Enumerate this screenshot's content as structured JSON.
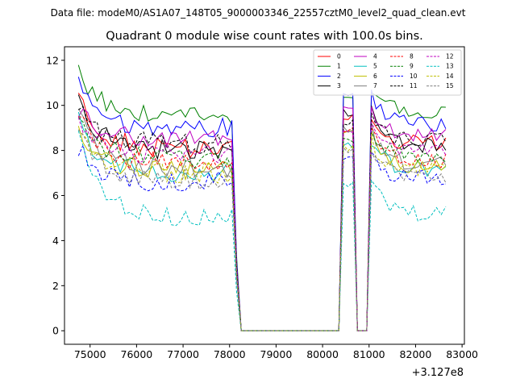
{
  "chart_data": {
    "type": "line",
    "suptitle": "Data file: modeM0/AS1A07_148T05_9000003346_22557cztM0_level2_quad_clean.evt",
    "title": "Quadrant 0 module wise count rates with 100.0s bins.",
    "xlabel": "",
    "ylabel": "",
    "offset_label": "+3.127e8",
    "xlim": [
      74450,
      83050
    ],
    "ylim": [
      -0.6,
      12.6
    ],
    "xticks": [
      75000,
      76000,
      77000,
      78000,
      79000,
      80000,
      81000,
      82000,
      83000
    ],
    "yticks": [
      0,
      2,
      4,
      6,
      8,
      10,
      12
    ],
    "legend": {
      "placement": "top-right",
      "columns": 4
    },
    "bins_start": 74750,
    "bin_width": 100,
    "segments": [
      {
        "from": 74750,
        "to": 78050,
        "state": "active"
      },
      {
        "from": 78050,
        "to": 78250,
        "state": "ramp-down"
      },
      {
        "from": 78250,
        "to": 80350,
        "state": "zero"
      },
      {
        "from": 80450,
        "to": 80650,
        "state": "active"
      },
      {
        "from": 80750,
        "to": 80950,
        "state": "zero"
      },
      {
        "from": 81050,
        "to": 82650,
        "state": "active"
      }
    ],
    "series": [
      {
        "name": "0",
        "color": "#ff0000",
        "style": "solid",
        "level": 8.1,
        "start": 10.4,
        "peak": 9.5
      },
      {
        "name": "1",
        "color": "#008000",
        "style": "solid",
        "level": 9.5,
        "start": 11.7,
        "peak": 10.5
      },
      {
        "name": "2",
        "color": "#0000ff",
        "style": "solid",
        "level": 9.0,
        "start": 11.1,
        "peak": 10.3
      },
      {
        "name": "3",
        "color": "#000000",
        "style": "solid",
        "level": 8.0,
        "start": 10.3,
        "peak": 9.6
      },
      {
        "name": "4",
        "color": "#bf00bf",
        "style": "solid",
        "level": 8.5,
        "start": 9.9,
        "peak": 9.8
      },
      {
        "name": "5",
        "color": "#00bfbf",
        "style": "solid",
        "level": 7.0,
        "start": 9.3,
        "peak": 8.3
      },
      {
        "name": "6",
        "color": "#bfbf00",
        "style": "solid",
        "level": 7.1,
        "start": 9.0,
        "peak": 8.7
      },
      {
        "name": "7",
        "color": "#808080",
        "style": "solid",
        "level": 7.2,
        "start": 9.6,
        "peak": 8.9
      },
      {
        "name": "8",
        "color": "#ff0000",
        "style": "dashed",
        "level": 7.4,
        "start": 9.7,
        "peak": 8.8
      },
      {
        "name": "9",
        "color": "#008000",
        "style": "dashed",
        "level": 7.6,
        "start": 9.4,
        "peak": 8.6
      },
      {
        "name": "10",
        "color": "#0000ff",
        "style": "dashed",
        "level": 6.6,
        "start": 8.2,
        "peak": 7.8
      },
      {
        "name": "11",
        "color": "#000000",
        "style": "dashed",
        "level": 8.3,
        "start": 9.8,
        "peak": 9.3
      },
      {
        "name": "12",
        "color": "#bf00bf",
        "style": "dashed",
        "level": 7.8,
        "start": 9.5,
        "peak": 9.0
      },
      {
        "name": "13",
        "color": "#00bfbf",
        "style": "dashed",
        "level": 5.0,
        "start": 8.6,
        "peak": 6.5
      },
      {
        "name": "14",
        "color": "#bfbf00",
        "style": "dashed",
        "level": 7.0,
        "start": 8.8,
        "peak": 8.2
      },
      {
        "name": "15",
        "color": "#808080",
        "style": "dashed",
        "level": 6.7,
        "start": 9.0,
        "peak": 8.0
      }
    ]
  }
}
